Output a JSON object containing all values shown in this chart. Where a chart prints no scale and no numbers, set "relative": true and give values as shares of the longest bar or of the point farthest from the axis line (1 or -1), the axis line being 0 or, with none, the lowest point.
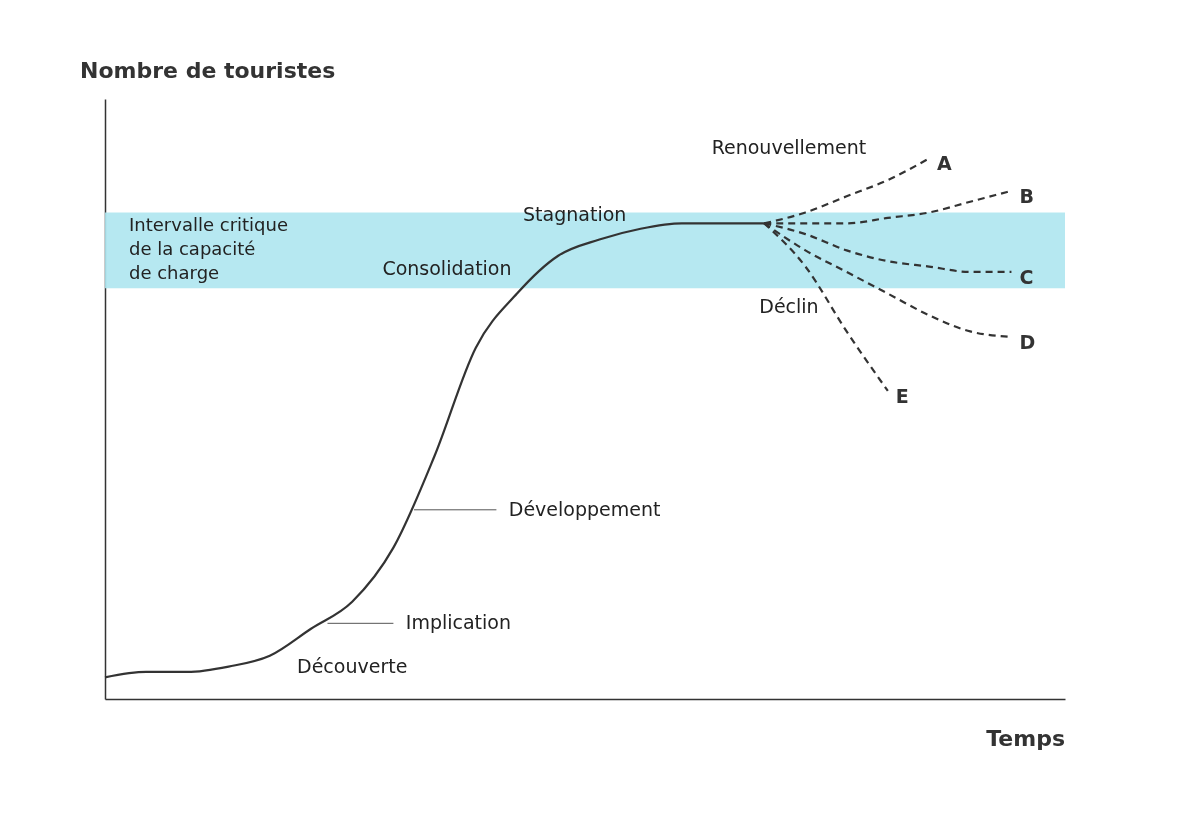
{
  "chart_data": {
    "type": "line",
    "relative": true,
    "xlabel": "Temps",
    "ylabel": "Nombre de touristes",
    "categories": [
      null,
      null,
      null,
      null,
      null,
      null,
      null,
      null,
      null,
      null,
      null,
      null,
      null,
      null,
      null,
      null,
      null,
      null,
      null,
      null,
      null,
      null,
      null
    ],
    "series": [
      {
        "color": "#333333",
        "line_style": "solid",
        "values": [
          0.04,
          0.05,
          0.05,
          0.06,
          0.08,
          0.13,
          0.18,
          0.28,
          0.45,
          0.65,
          0.75,
          0.82,
          0.85,
          0.87,
          0.88,
          0.88,
          0.88,
          null,
          null,
          null,
          null,
          null,
          null
        ]
      },
      {
        "name": "A",
        "color": "#333333",
        "line_style": "dashed",
        "values": [
          null,
          null,
          null,
          null,
          null,
          null,
          null,
          null,
          null,
          null,
          null,
          null,
          null,
          null,
          null,
          null,
          0.88,
          0.9,
          0.93,
          0.96,
          1.0,
          null,
          null
        ]
      },
      {
        "name": "B",
        "color": "#333333",
        "line_style": "dashed",
        "values": [
          null,
          null,
          null,
          null,
          null,
          null,
          null,
          null,
          null,
          null,
          null,
          null,
          null,
          null,
          null,
          null,
          0.88,
          0.88,
          0.88,
          0.89,
          0.9,
          0.92,
          0.94
        ]
      },
      {
        "name": "C",
        "color": "#333333",
        "line_style": "dashed",
        "values": [
          null,
          null,
          null,
          null,
          null,
          null,
          null,
          null,
          null,
          null,
          null,
          null,
          null,
          null,
          null,
          null,
          0.88,
          0.86,
          0.83,
          0.81,
          0.8,
          0.79,
          0.79
        ]
      },
      {
        "name": "D",
        "color": "#333333",
        "line_style": "dashed",
        "values": [
          null,
          null,
          null,
          null,
          null,
          null,
          null,
          null,
          null,
          null,
          null,
          null,
          null,
          null,
          null,
          null,
          0.88,
          0.83,
          0.79,
          0.75,
          0.71,
          0.68,
          0.67
        ]
      },
      {
        "name": "E",
        "color": "#333333",
        "line_style": "dashed",
        "values": [
          null,
          null,
          null,
          null,
          null,
          null,
          null,
          null,
          null,
          null,
          null,
          null,
          null,
          null,
          null,
          null,
          0.88,
          0.8,
          0.68,
          0.57,
          null,
          null,
          null
        ]
      }
    ],
    "bands": [
      {
        "axis": "y",
        "from": 0.76,
        "to": 0.9,
        "color": "#aee6f0",
        "label": "Intervalle critique\nde la capacité\nde charge"
      }
    ],
    "annotations": [
      "Renouvellement",
      "Stagnation",
      "Consolidation",
      "Déclin",
      "Développement",
      "Implication",
      "Découverte"
    ],
    "grid": false
  }
}
